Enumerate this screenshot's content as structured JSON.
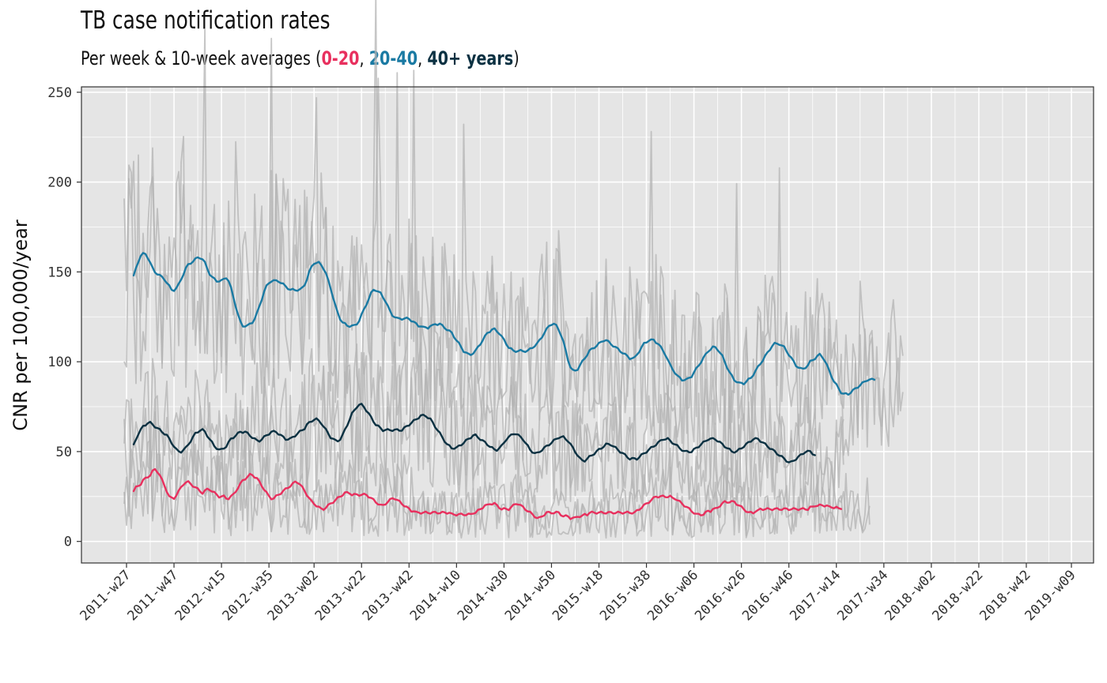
{
  "title": "TB case notification rates",
  "subtitle": {
    "prefix": "Per week & 10-week averages (",
    "group_a": "0-20",
    "sep1": ", ",
    "group_b": "20-40",
    "sep2": ", ",
    "group_c": "40+ years",
    "suffix": ")"
  },
  "colors": {
    "panel": "#e5e5e5",
    "grid": "#ffffff",
    "weekly": "#b3b3b3",
    "age_0_20": "#e8305e",
    "age_20_40": "#1a7aa3",
    "age_40_plus": "#0b3142"
  },
  "chart_data": {
    "type": "line",
    "title": "TB case notification rates",
    "subtitle": "Per week & 10-week averages (0-20, 20-40, 40+ years)",
    "xlabel": "",
    "ylabel": "CNR per 100,000/year",
    "x_ticks": [
      "2011-w27",
      "2011-w47",
      "2012-w15",
      "2012-w35",
      "2013-w02",
      "2013-w22",
      "2013-w42",
      "2014-w10",
      "2014-w30",
      "2014-w50",
      "2015-w18",
      "2015-w38",
      "2016-w06",
      "2016-w26",
      "2016-w46",
      "2017-w14",
      "2017-w34",
      "2018-w02",
      "2018-w22",
      "2018-w42",
      "2019-w09"
    ],
    "y_ticks": [
      0,
      50,
      100,
      150,
      200,
      250
    ],
    "ylim": [
      -12,
      253
    ],
    "grid": true,
    "legend": "in subtitle",
    "series": [
      {
        "name": "0-20",
        "kind": "10-week average",
        "x_start": "2011-w30",
        "values": [
          28,
          30,
          31,
          32,
          34,
          35,
          36,
          37,
          39,
          40,
          39,
          37,
          34,
          31,
          28,
          25,
          24,
          24,
          26,
          28,
          30,
          32,
          33,
          33,
          32,
          31,
          30,
          29,
          28,
          27,
          28,
          29,
          29,
          28,
          27,
          26,
          25,
          25,
          25,
          24,
          24,
          25,
          26,
          28,
          30,
          32,
          34,
          35,
          36,
          37,
          37,
          36,
          35,
          33,
          31,
          29,
          27,
          25,
          24,
          24,
          25,
          26,
          27,
          28,
          29,
          30,
          31,
          32,
          33,
          33,
          32,
          30,
          28,
          26,
          24,
          22,
          21,
          20,
          19,
          18,
          18,
          19,
          20,
          21,
          22,
          23,
          24,
          25,
          26,
          27,
          27,
          27,
          26,
          26,
          26,
          26,
          26,
          26,
          26,
          25,
          24,
          23,
          22,
          21,
          20,
          20,
          21,
          22,
          23,
          24,
          24,
          23,
          22,
          21,
          20,
          19,
          18,
          17,
          17,
          16,
          16,
          16,
          16,
          16,
          16,
          16,
          16,
          16,
          16,
          16,
          16,
          16,
          16,
          16,
          15,
          15,
          15,
          15,
          15,
          15,
          15,
          15,
          15,
          16,
          16,
          17,
          18,
          19,
          20,
          20,
          21,
          21,
          21,
          20,
          19,
          18,
          18,
          18,
          18,
          19,
          20,
          21,
          21,
          20,
          19,
          18,
          17,
          16,
          15,
          14,
          13,
          13,
          14,
          15,
          16,
          16,
          16,
          16,
          16,
          16,
          15,
          14,
          14,
          14,
          13,
          13,
          13,
          14,
          14,
          14,
          15,
          15,
          16,
          16,
          16,
          16,
          16,
          16,
          16,
          16,
          16,
          16,
          16,
          16,
          16,
          16,
          16,
          16,
          16,
          16,
          16,
          16,
          17,
          18,
          19,
          20,
          21,
          22,
          23,
          24,
          25,
          25,
          25,
          25,
          25,
          25,
          25,
          24,
          24,
          23,
          22,
          21,
          20,
          19,
          18,
          17,
          16,
          15,
          15,
          15,
          15,
          16,
          17,
          17,
          18,
          18,
          19,
          20,
          21,
          22,
          22,
          22,
          22,
          22,
          21,
          20,
          19,
          18,
          17,
          16,
          16,
          16,
          17,
          17,
          18,
          18,
          18,
          18,
          18,
          18,
          18,
          18,
          18,
          18,
          18,
          18,
          18,
          18,
          18,
          18,
          18,
          18,
          18,
          18,
          18,
          19,
          19,
          20,
          20,
          20,
          20,
          20,
          20,
          19,
          19,
          19,
          19,
          18,
          18
        ]
      },
      {
        "name": "20-40",
        "kind": "10-week average",
        "x_start": "2011-w30",
        "values": [
          148,
          152,
          156,
          159,
          160,
          160,
          158,
          155,
          152,
          150,
          149,
          148,
          147,
          146,
          144,
          142,
          140,
          140,
          141,
          143,
          146,
          149,
          152,
          154,
          155,
          156,
          157,
          158,
          158,
          157,
          155,
          152,
          149,
          147,
          146,
          145,
          145,
          145,
          146,
          147,
          145,
          141,
          136,
          131,
          126,
          122,
          120,
          120,
          120,
          121,
          122,
          124,
          127,
          131,
          135,
          139,
          142,
          144,
          145,
          145,
          145,
          145,
          144,
          143,
          142,
          141,
          140,
          140,
          140,
          140,
          140,
          141,
          143,
          146,
          150,
          153,
          155,
          155,
          155,
          154,
          152,
          149,
          145,
          141,
          136,
          131,
          127,
          124,
          122,
          121,
          120,
          120,
          120,
          120,
          121,
          123,
          126,
          129,
          132,
          135,
          138,
          140,
          140,
          139,
          138,
          136,
          134,
          131,
          128,
          126,
          125,
          124,
          124,
          124,
          124,
          124,
          124,
          123,
          122,
          121,
          120,
          120,
          119,
          119,
          119,
          120,
          120,
          121,
          121,
          121,
          120,
          119,
          118,
          117,
          116,
          114,
          112,
          110,
          108,
          106,
          105,
          104,
          104,
          105,
          106,
          108,
          110,
          112,
          114,
          116,
          117,
          118,
          118,
          117,
          116,
          114,
          112,
          110,
          108,
          107,
          106,
          106,
          106,
          106,
          106,
          106,
          106,
          107,
          108,
          109,
          110,
          112,
          114,
          116,
          118,
          120,
          121,
          121,
          120,
          118,
          115,
          111,
          106,
          101,
          97,
          95,
          95,
          96,
          98,
          100,
          102,
          104,
          106,
          107,
          108,
          109,
          110,
          111,
          112,
          112,
          111,
          110,
          109,
          108,
          107,
          106,
          105,
          104,
          103,
          102,
          102,
          102,
          104,
          106,
          108,
          110,
          111,
          112,
          112,
          112,
          111,
          110,
          108,
          106,
          104,
          101,
          98,
          96,
          94,
          92,
          91,
          90,
          90,
          90,
          91,
          92,
          94,
          96,
          98,
          100,
          102,
          104,
          106,
          107,
          108,
          108,
          107,
          105,
          103,
          100,
          97,
          94,
          92,
          90,
          89,
          88,
          88,
          88,
          89,
          90,
          91,
          93,
          95,
          97,
          99,
          101,
          103,
          105,
          107,
          109,
          110,
          110,
          110,
          109,
          108,
          106,
          104,
          102,
          100,
          98,
          97,
          96,
          96,
          97,
          98,
          100,
          101,
          102,
          103,
          104,
          103,
          101,
          98,
          95,
          92,
          89,
          87,
          85,
          83,
          82,
          82,
          82,
          83,
          84,
          85,
          86,
          87,
          88,
          89,
          90,
          90,
          90,
          90
        ]
      },
      {
        "name": "40+ years",
        "kind": "10-week average",
        "x_start": "2011-w30",
        "values": [
          54,
          57,
          60,
          62,
          64,
          65,
          66,
          66,
          65,
          64,
          63,
          62,
          61,
          60,
          59,
          57,
          55,
          53,
          51,
          50,
          50,
          51,
          52,
          54,
          56,
          58,
          60,
          61,
          62,
          62,
          61,
          59,
          57,
          55,
          53,
          52,
          51,
          51,
          52,
          53,
          55,
          57,
          58,
          59,
          60,
          61,
          61,
          61,
          60,
          59,
          58,
          57,
          56,
          56,
          57,
          58,
          59,
          60,
          61,
          61,
          61,
          60,
          59,
          58,
          57,
          57,
          57,
          58,
          59,
          60,
          61,
          62,
          63,
          65,
          66,
          67,
          68,
          68,
          67,
          66,
          64,
          62,
          60,
          58,
          57,
          56,
          56,
          57,
          59,
          62,
          65,
          68,
          71,
          73,
          75,
          76,
          76,
          75,
          73,
          71,
          69,
          67,
          65,
          64,
          63,
          62,
          62,
          62,
          62,
          62,
          62,
          62,
          62,
          62,
          63,
          64,
          65,
          66,
          67,
          68,
          69,
          70,
          70,
          70,
          69,
          68,
          66,
          64,
          62,
          60,
          58,
          56,
          54,
          53,
          52,
          52,
          52,
          53,
          54,
          55,
          56,
          57,
          58,
          59,
          59,
          58,
          57,
          56,
          55,
          54,
          53,
          52,
          51,
          51,
          52,
          53,
          55,
          57,
          58,
          59,
          60,
          60,
          59,
          58,
          57,
          55,
          53,
          51,
          50,
          49,
          49,
          50,
          51,
          52,
          53,
          54,
          55,
          56,
          57,
          58,
          58,
          58,
          57,
          56,
          54,
          52,
          50,
          48,
          46,
          45,
          45,
          46,
          47,
          48,
          49,
          50,
          51,
          52,
          53,
          54,
          54,
          54,
          53,
          52,
          51,
          50,
          49,
          48,
          47,
          46,
          46,
          46,
          46,
          47,
          48,
          49,
          50,
          51,
          52,
          53,
          54,
          55,
          56,
          57,
          57,
          57,
          56,
          55,
          54,
          53,
          52,
          51,
          50,
          50,
          50,
          50,
          51,
          52,
          53,
          54,
          55,
          56,
          57,
          57,
          57,
          57,
          56,
          55,
          54,
          53,
          52,
          51,
          50,
          50,
          50,
          51,
          52,
          53,
          54,
          55,
          56,
          57,
          57,
          57,
          56,
          55,
          54,
          53,
          52,
          51,
          50,
          49,
          48,
          47,
          46,
          45,
          44,
          44,
          45,
          46,
          47,
          48,
          49,
          50,
          50,
          50,
          49,
          48
        ]
      }
    ]
  }
}
